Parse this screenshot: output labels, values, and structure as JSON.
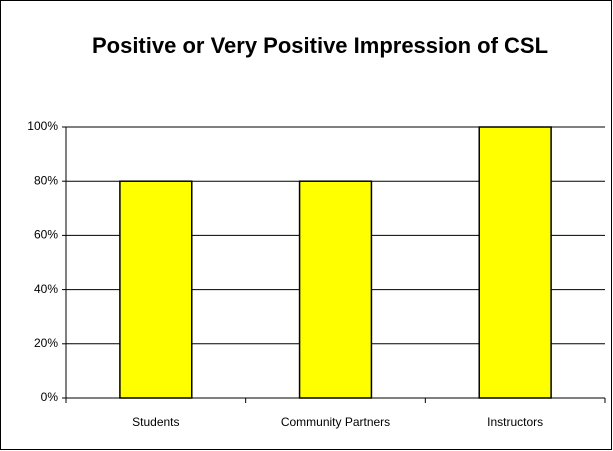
{
  "chart_data": {
    "type": "bar",
    "title": "Positive or Very Positive Impression of CSL",
    "categories": [
      "Students",
      "Community Partners",
      "Instructors"
    ],
    "values": [
      80,
      80,
      100
    ],
    "color": "#ffff00",
    "ylim": [
      0,
      100
    ],
    "yticks": [
      {
        "value": 0,
        "label": "0%"
      },
      {
        "value": 20,
        "label": "20%"
      },
      {
        "value": 40,
        "label": "40%"
      },
      {
        "value": 60,
        "label": "60%"
      },
      {
        "value": 80,
        "label": "80%"
      },
      {
        "value": 100,
        "label": "100%"
      }
    ],
    "grid": true
  }
}
